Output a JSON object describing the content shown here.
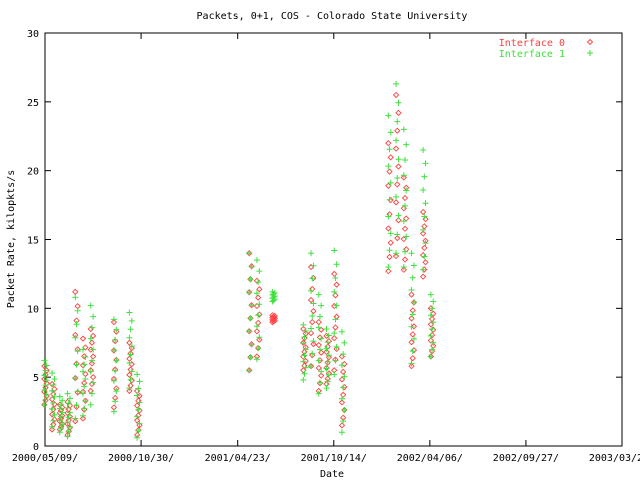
{
  "chart_data": {
    "type": "scatter",
    "title": "Packets, 0+1, COS - Colorado State University",
    "xlabel": "Date",
    "ylabel": "Packet Rate, kilopkts/s",
    "ylim": [
      0,
      30
    ],
    "xlim": [
      "2000/05/09",
      "2003/03/20"
    ],
    "x_tick_labels": [
      "2000/05/09/",
      "2000/10/30/",
      "2001/04/23/",
      "2001/10/14/",
      "2002/04/06/",
      "2002/09/27/",
      "2003/03/20/"
    ],
    "x_tick_dates": [
      "2000/05/09",
      "2000/10/30",
      "2001/04/23",
      "2001/10/14",
      "2002/04/06",
      "2002/09/27",
      "2003/03/20"
    ],
    "y_ticks": [
      0,
      5,
      10,
      15,
      20,
      25,
      30
    ],
    "legend_position": "top-right",
    "grid": false,
    "series": [
      {
        "name": "Interface 0",
        "marker": "diamond",
        "color": "#ff4040",
        "points": [
          {
            "date": "2000/05/10",
            "min": 3.0,
            "max": 5.8
          },
          {
            "date": "2000/05/24",
            "min": 1.2,
            "max": 4.5
          },
          {
            "date": "2000/06/07",
            "min": 1.2,
            "max": 3.0
          },
          {
            "date": "2000/06/21",
            "min": 0.8,
            "max": 3.2
          },
          {
            "date": "2000/07/05",
            "min": 1.8,
            "max": 11.2
          },
          {
            "date": "2000/07/19",
            "min": 2.0,
            "max": 7.8
          },
          {
            "date": "2000/08/02",
            "min": 4.0,
            "max": 8.5
          },
          {
            "date": "2000/09/13",
            "min": 2.8,
            "max": 9.0
          },
          {
            "date": "2000/10/11",
            "min": 4.0,
            "max": 7.5
          },
          {
            "date": "2000/10/25",
            "min": 0.8,
            "max": 4.0
          },
          {
            "date": "2001/05/16",
            "min": 5.5,
            "max": 14.0
          },
          {
            "date": "2001/05/30",
            "min": 6.5,
            "max": 12.0
          },
          {
            "date": "2001/06/27",
            "min": 9.0,
            "max": 9.5
          },
          {
            "date": "2001/08/22",
            "min": 5.5,
            "max": 8.5
          },
          {
            "date": "2001/09/05",
            "min": 5.8,
            "max": 13.0
          },
          {
            "date": "2001/09/19",
            "min": 4.0,
            "max": 9.0
          },
          {
            "date": "2001/10/03",
            "min": 4.5,
            "max": 8.0
          },
          {
            "date": "2001/10/17",
            "min": 5.5,
            "max": 12.5
          },
          {
            "date": "2001/10/31",
            "min": 1.5,
            "max": 6.5
          },
          {
            "date": "2002/01/23",
            "min": 12.7,
            "max": 22.0
          },
          {
            "date": "2002/02/06",
            "min": 13.8,
            "max": 25.5
          },
          {
            "date": "2002/02/20",
            "min": 12.8,
            "max": 19.5
          },
          {
            "date": "2002/03/06",
            "min": 5.8,
            "max": 11.0
          },
          {
            "date": "2002/03/27",
            "min": 12.3,
            "max": 17.0
          },
          {
            "date": "2002/04/10",
            "min": 6.5,
            "max": 10.0
          }
        ]
      },
      {
        "name": "Interface 1",
        "marker": "plus",
        "color": "#40e040",
        "points": [
          {
            "date": "2000/05/10",
            "min": 3.0,
            "max": 6.2
          },
          {
            "date": "2000/05/24",
            "min": 1.4,
            "max": 5.3
          },
          {
            "date": "2000/06/07",
            "min": 1.0,
            "max": 3.6
          },
          {
            "date": "2000/06/21",
            "min": 0.7,
            "max": 3.8
          },
          {
            "date": "2000/07/05",
            "min": 2.0,
            "max": 10.8
          },
          {
            "date": "2000/07/19",
            "min": 2.2,
            "max": 7.0
          },
          {
            "date": "2000/08/02",
            "min": 3.0,
            "max": 10.2
          },
          {
            "date": "2000/09/13",
            "min": 2.5,
            "max": 9.2
          },
          {
            "date": "2000/10/11",
            "min": 4.2,
            "max": 9.7
          },
          {
            "date": "2000/10/25",
            "min": 0.6,
            "max": 5.2
          },
          {
            "date": "2001/05/16",
            "min": 5.5,
            "max": 14.0
          },
          {
            "date": "2001/05/30",
            "min": 6.3,
            "max": 13.5
          },
          {
            "date": "2001/06/27",
            "min": 10.5,
            "max": 11.2
          },
          {
            "date": "2001/08/22",
            "min": 4.8,
            "max": 8.8
          },
          {
            "date": "2001/09/05",
            "min": 5.8,
            "max": 14.0
          },
          {
            "date": "2001/09/19",
            "min": 3.8,
            "max": 11.0
          },
          {
            "date": "2001/10/03",
            "min": 4.2,
            "max": 8.5
          },
          {
            "date": "2001/10/17",
            "min": 5.2,
            "max": 14.2
          },
          {
            "date": "2001/10/31",
            "min": 1.0,
            "max": 8.3
          },
          {
            "date": "2002/01/23",
            "min": 13.0,
            "max": 24.0
          },
          {
            "date": "2002/02/06",
            "min": 14.0,
            "max": 26.3
          },
          {
            "date": "2002/02/20",
            "min": 13.0,
            "max": 23.0
          },
          {
            "date": "2002/03/06",
            "min": 6.0,
            "max": 14.0
          },
          {
            "date": "2002/03/27",
            "min": 12.8,
            "max": 21.5
          },
          {
            "date": "2002/04/10",
            "min": 6.5,
            "max": 11.0
          }
        ]
      }
    ]
  }
}
